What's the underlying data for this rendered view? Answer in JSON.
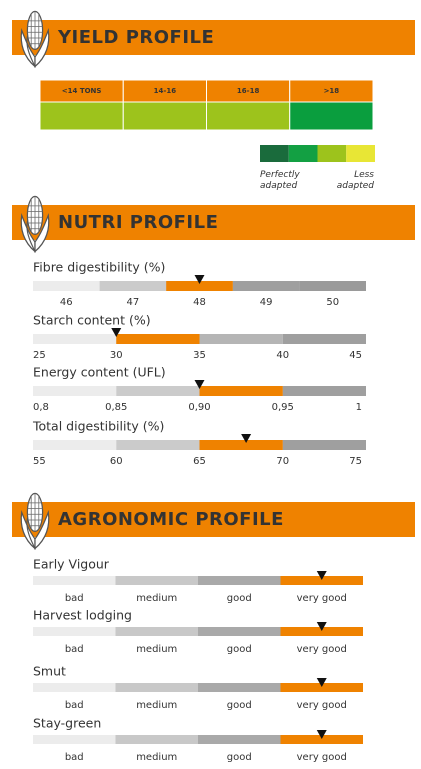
{
  "accent": "#ef8200",
  "sections": [
    {
      "title": "YIELD PROFILE",
      "categories": [
        "<14 TONS",
        "14-16",
        "16-18",
        ">18"
      ],
      "cell_colors": [
        "#9dc31c",
        "#9dc31c",
        "#9dc31c",
        "#0a9e3e"
      ],
      "legend": {
        "colors": [
          "#1a6b3c",
          "#13a043",
          "#9dc31c",
          "#e8e635"
        ],
        "labels": [
          "Perfectly adapted",
          "Less adapted"
        ]
      }
    },
    {
      "title": "NUTRI PROFILE",
      "rows": [
        {
          "label": "Fibre digestibility (%)",
          "ticks": [
            46,
            47,
            48,
            49,
            50
          ],
          "tick_position": "center",
          "xlim": [
            45.5,
            50.5
          ],
          "range": [
            47.5,
            48.5
          ],
          "value": 48
        },
        {
          "label": "Starch content (%)",
          "ticks": [
            25,
            30,
            35,
            40,
            45
          ],
          "tick_position": "edge",
          "xlim": [
            25,
            45
          ],
          "range": [
            30,
            35
          ],
          "value": 30
        },
        {
          "label": "Energy content (UFL)",
          "ticks": [
            {
              "value": 0.8,
              "label": "0,8"
            },
            {
              "value": 0.85,
              "label": "0,85"
            },
            {
              "value": 0.9,
              "label": "0,90"
            },
            {
              "value": 0.95,
              "label": "0,95"
            },
            1
          ],
          "tick_position": "edge",
          "xlim": [
            0.8,
            1
          ],
          "range": [
            0.9,
            0.95
          ],
          "value": 0.9
        },
        {
          "label": "Total digestibility (%)",
          "ticks": [
            55,
            60,
            65,
            70,
            75
          ],
          "tick_position": "edge",
          "xlim": [
            55,
            75
          ],
          "range": [
            65,
            70
          ],
          "value": 67.8
        }
      ]
    },
    {
      "title": "AGRONOMIC PROFILE",
      "scale": [
        "bad",
        "medium",
        "good",
        "very good"
      ],
      "xlim": [
        0,
        4
      ],
      "rows": [
        {
          "label": "Early Vigour",
          "value": 3.5
        },
        {
          "label": "Harvest lodging",
          "value": 3.5
        },
        {
          "label": "Smut",
          "value": 3.5
        },
        {
          "label": "Stay-green",
          "value": 3.5
        }
      ]
    }
  ]
}
